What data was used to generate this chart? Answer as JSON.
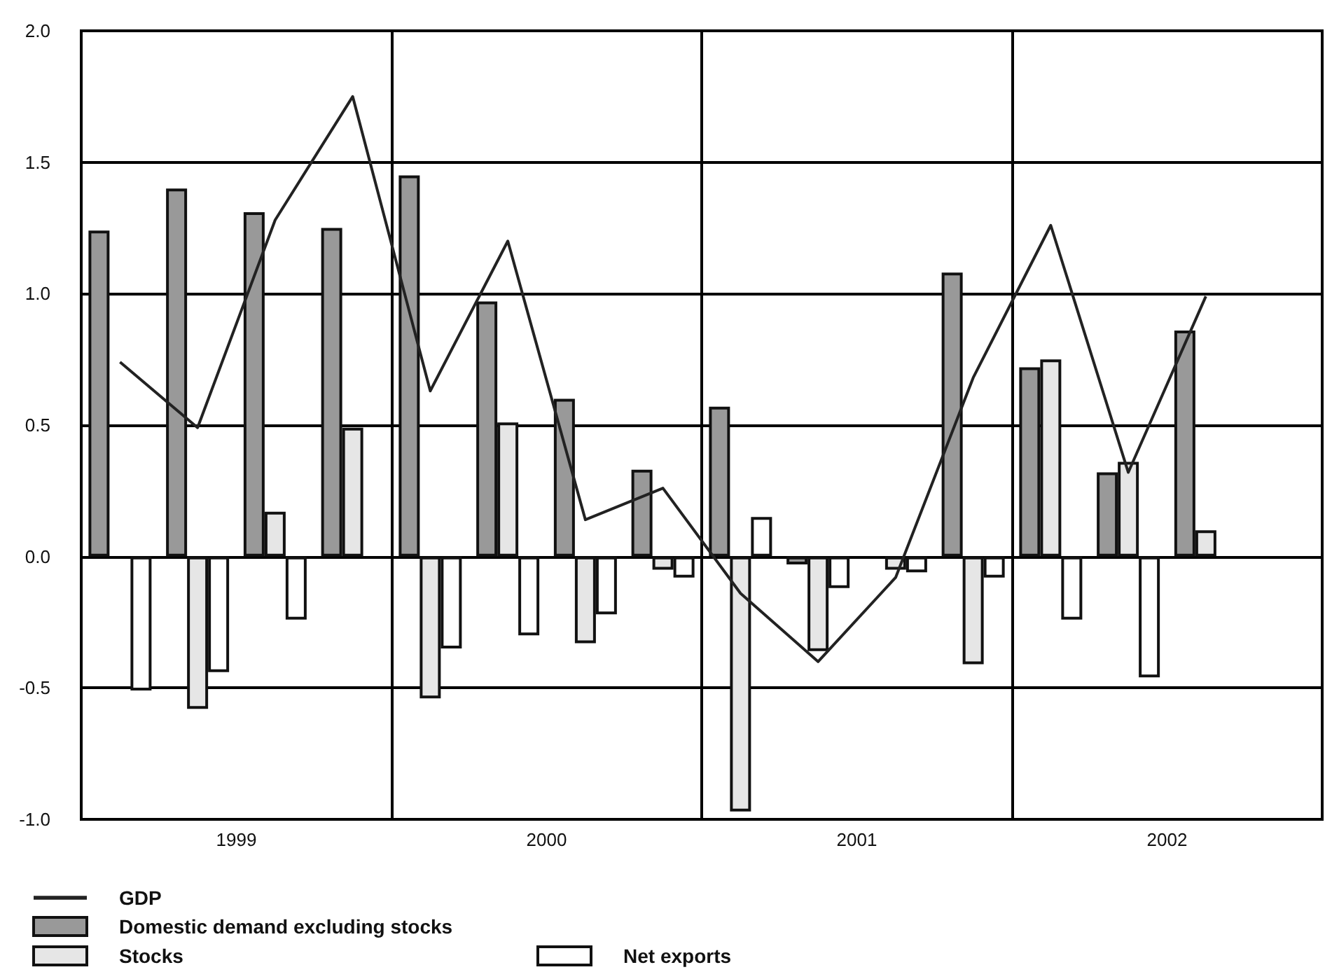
{
  "chart_data": {
    "type": "bar",
    "x": [
      1999.125,
      1999.375,
      1999.625,
      1999.875,
      2000.125,
      2000.375,
      2000.625,
      2000.875,
      2001.125,
      2001.375,
      2001.625,
      2001.875,
      2002.125,
      2002.375,
      2002.625
    ],
    "series": [
      {
        "name": "GDP",
        "type": "line",
        "color": "#222222",
        "values": [
          0.74,
          0.49,
          1.28,
          1.75,
          0.63,
          1.2,
          0.14,
          0.26,
          -0.14,
          -0.4,
          -0.08,
          0.68,
          1.26,
          0.32,
          0.99
        ]
      },
      {
        "name": "Domestic demand excluding stocks",
        "color": "#999999",
        "values": [
          1.24,
          1.4,
          1.31,
          1.25,
          1.45,
          0.97,
          0.6,
          0.33,
          0.57,
          -0.03,
          0,
          1.08,
          0.72,
          0.32,
          0.86
        ]
      },
      {
        "name": "Stocks",
        "color": "#e6e6e6",
        "values": [
          0,
          -0.58,
          0.17,
          0.49,
          -0.54,
          0.51,
          -0.33,
          -0.05,
          -0.97,
          -0.36,
          -0.05,
          -0.41,
          0.75,
          0.36,
          0.1
        ]
      },
      {
        "name": "Net exports",
        "color": "#ffffff",
        "values": [
          -0.51,
          -0.44,
          -0.24,
          0,
          -0.35,
          -0.3,
          -0.22,
          -0.08,
          0.15,
          -0.12,
          -0.06,
          -0.08,
          -0.24,
          -0.46,
          0
        ]
      }
    ],
    "xlim": [
      1999,
      2003
    ],
    "xticks": [
      {
        "value": 1999.5,
        "label": "1999"
      },
      {
        "value": 2000.5,
        "label": "2000"
      },
      {
        "value": 2001.5,
        "label": "2001"
      },
      {
        "value": 2002.5,
        "label": "2002"
      }
    ],
    "ylim": [
      -1,
      2
    ],
    "yticks": [
      {
        "value": -1,
        "label": "-1.0"
      },
      {
        "value": -0.5,
        "label": "-0.5"
      },
      {
        "value": 0,
        "label": "0.0"
      },
      {
        "value": 0.5,
        "label": "0.5"
      },
      {
        "value": 1,
        "label": "1.0"
      },
      {
        "value": 1.5,
        "label": "1.5"
      },
      {
        "value": 2,
        "label": "2.0"
      }
    ],
    "ref_lines": [
      {
        "axis": "x",
        "value": 2000
      },
      {
        "axis": "x",
        "value": 2001
      },
      {
        "axis": "x",
        "value": 2002
      }
    ],
    "grid": "y",
    "legend": "bottom",
    "marker": "none",
    "line_style": "solid"
  }
}
